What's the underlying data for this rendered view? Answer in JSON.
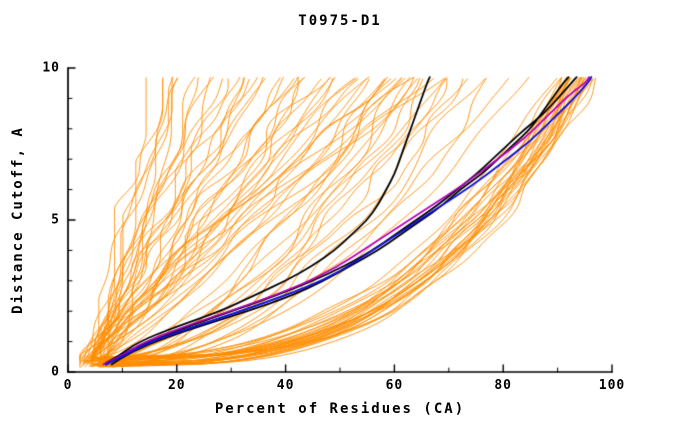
{
  "chart_data": {
    "type": "line",
    "title": "T0975-D1",
    "xlabel": "Percent of Residues (CA)",
    "ylabel": "Distance Cutoff, A",
    "xlim": [
      0,
      100
    ],
    "ylim": [
      0,
      10
    ],
    "x_major_ticks": [
      0,
      20,
      40,
      60,
      80,
      100
    ],
    "x_minor_ticks": [
      10,
      30,
      50,
      70,
      90
    ],
    "y_major_ticks": [
      0,
      5,
      10
    ],
    "y_minor_ticks": [
      1,
      2,
      3,
      4,
      6,
      7,
      8,
      9
    ],
    "y_data_max": 9.7,
    "grid": false,
    "legend": "none",
    "colors": {
      "prediction": "#ff8c00",
      "highlight": "#000000",
      "best_model": "#1111dd",
      "reference": "#bb00bb",
      "axis": "#000000",
      "background": "#ffffff"
    },
    "prediction_curves": [
      [
        6,
        96,
        0.32,
        101,
        0.9
      ],
      [
        7,
        95,
        0.35,
        102,
        0.9
      ],
      [
        5,
        94,
        0.33,
        103,
        0.9
      ],
      [
        8,
        96,
        0.3,
        104,
        0.9
      ],
      [
        6,
        93,
        0.36,
        105,
        0.9
      ],
      [
        7,
        97,
        0.31,
        106,
        0.9
      ],
      [
        5,
        92,
        0.38,
        107,
        0.9
      ],
      [
        8,
        95,
        0.34,
        108,
        0.9
      ],
      [
        6,
        94,
        0.37,
        109,
        0.9
      ],
      [
        7,
        96,
        0.33,
        110,
        0.9
      ],
      [
        5,
        95,
        0.3,
        111,
        0.9
      ],
      [
        8,
        93,
        0.39,
        112,
        0.9
      ],
      [
        6,
        92,
        0.35,
        113,
        0.9
      ],
      [
        7,
        94,
        0.32,
        114,
        0.9
      ],
      [
        5,
        96,
        0.36,
        115,
        0.9
      ],
      [
        8,
        94,
        0.31,
        116,
        0.9
      ],
      [
        6,
        95,
        0.38,
        117,
        0.9
      ],
      [
        7,
        93,
        0.34,
        118,
        0.9
      ],
      [
        5,
        93,
        0.4,
        119,
        0.9
      ],
      [
        8,
        96,
        0.33,
        120,
        0.9
      ],
      [
        6,
        91,
        0.36,
        121,
        0.9
      ],
      [
        7,
        95,
        0.37,
        122,
        0.9
      ],
      [
        5,
        94,
        0.31,
        123,
        0.9
      ],
      [
        8,
        92,
        0.35,
        124,
        0.9
      ],
      [
        6,
        96,
        0.34,
        125,
        0.9
      ],
      [
        7,
        91,
        0.38,
        126,
        0.9
      ],
      [
        5,
        95,
        0.33,
        127,
        0.9
      ],
      [
        6,
        90,
        0.41,
        128,
        0.9
      ],
      [
        7,
        92,
        0.3,
        129,
        0.9
      ],
      [
        5,
        91,
        0.37,
        130,
        0.9
      ],
      [
        5,
        62,
        0.55,
        131,
        1.3
      ],
      [
        6,
        66,
        0.5,
        132,
        1.3
      ],
      [
        4,
        70,
        0.52,
        133,
        1.3
      ],
      [
        7,
        58,
        0.6,
        134,
        1.3
      ],
      [
        5,
        75,
        0.48,
        135,
        1.3
      ],
      [
        6,
        60,
        0.65,
        136,
        1.3
      ],
      [
        4,
        64,
        0.58,
        137,
        1.3
      ],
      [
        7,
        72,
        0.5,
        138,
        1.3
      ],
      [
        5,
        68,
        0.62,
        139,
        1.3
      ],
      [
        6,
        78,
        0.47,
        140,
        1.3
      ],
      [
        4,
        56,
        0.68,
        141,
        1.3
      ],
      [
        7,
        65,
        0.55,
        142,
        1.3
      ],
      [
        5,
        80,
        0.5,
        143,
        1.3
      ],
      [
        6,
        63,
        0.6,
        144,
        1.3
      ],
      [
        4,
        74,
        0.53,
        145,
        1.3
      ],
      [
        7,
        69,
        0.57,
        146,
        1.3
      ],
      [
        5,
        59,
        0.64,
        147,
        1.3
      ],
      [
        6,
        84,
        0.49,
        148,
        1.3
      ],
      [
        4,
        15,
        1.0,
        149,
        1.5
      ],
      [
        5,
        18,
        0.95,
        150,
        1.5
      ],
      [
        3,
        20,
        1.05,
        151,
        1.5
      ],
      [
        6,
        22,
        1.1,
        152,
        1.5
      ],
      [
        4,
        24,
        0.9,
        153,
        1.5
      ],
      [
        5,
        26,
        1.0,
        154,
        1.5
      ],
      [
        3,
        28,
        1.15,
        155,
        1.5
      ],
      [
        6,
        30,
        0.92,
        156,
        1.5
      ],
      [
        4,
        32,
        1.05,
        157,
        1.5
      ],
      [
        5,
        34,
        0.98,
        158,
        1.5
      ],
      [
        3,
        36,
        1.1,
        159,
        1.5
      ],
      [
        6,
        38,
        0.9,
        160,
        1.5
      ],
      [
        4,
        40,
        1.0,
        161,
        1.5
      ],
      [
        5,
        42,
        1.08,
        162,
        1.5
      ],
      [
        3,
        44,
        0.94,
        163,
        1.5
      ],
      [
        6,
        46,
        1.02,
        164,
        1.5
      ],
      [
        4,
        48,
        0.96,
        165,
        1.5
      ],
      [
        5,
        50,
        1.12,
        166,
        1.5
      ],
      [
        3,
        52,
        0.9,
        167,
        1.5
      ],
      [
        6,
        54,
        1.0,
        168,
        1.5
      ],
      [
        4,
        56,
        1.06,
        169,
        1.5
      ],
      [
        5,
        58,
        0.93,
        170,
        1.5
      ],
      [
        3,
        60,
        1.04,
        171,
        1.5
      ],
      [
        6,
        62,
        0.97,
        172,
        1.5
      ],
      [
        4,
        64,
        1.1,
        173,
        1.5
      ],
      [
        5,
        66,
        0.9,
        174,
        1.5
      ],
      [
        3,
        68,
        1.0,
        175,
        1.5
      ],
      [
        6,
        17,
        1.05,
        176,
        1.5
      ],
      [
        4,
        21,
        0.92,
        177,
        1.5
      ],
      [
        5,
        25,
        1.08,
        178,
        1.5
      ],
      [
        3,
        29,
        0.95,
        179,
        1.5
      ],
      [
        6,
        33,
        1.02,
        180,
        1.5
      ],
      [
        4,
        37,
        1.12,
        181,
        1.5
      ],
      [
        5,
        41,
        0.9,
        182,
        1.5
      ],
      [
        3,
        45,
        1.0,
        183,
        1.5
      ],
      [
        6,
        49,
        1.05,
        184,
        1.5
      ],
      [
        4,
        53,
        0.94,
        185,
        1.5
      ],
      [
        5,
        57,
        1.1,
        186,
        1.5
      ],
      [
        3,
        61,
        0.98,
        187,
        1.5
      ],
      [
        6,
        65,
        1.03,
        188,
        1.5
      ],
      [
        4,
        19,
        1.0,
        189,
        1.5
      ],
      [
        5,
        27,
        0.96,
        190,
        1.5
      ],
      [
        3,
        35,
        1.07,
        191,
        1.5
      ],
      [
        6,
        43,
        0.91,
        192,
        1.5
      ],
      [
        4,
        51,
        1.01,
        193,
        1.5
      ]
    ],
    "highlight_curves": [
      {
        "name": "black-mid",
        "color": "#000000",
        "width": 1.8,
        "points": [
          [
            7,
            0.25
          ],
          [
            9,
            0.5
          ],
          [
            13,
            1.0
          ],
          [
            20,
            1.5
          ],
          [
            28,
            2.0
          ],
          [
            34,
            2.5
          ],
          [
            40,
            3.0
          ],
          [
            45,
            3.5
          ],
          [
            49,
            4.0
          ],
          [
            52,
            4.5
          ],
          [
            55,
            5.0
          ],
          [
            57,
            5.5
          ],
          [
            58.5,
            6.0
          ],
          [
            60,
            6.5
          ],
          [
            61,
            7.0
          ],
          [
            62,
            7.5
          ],
          [
            63,
            8.0
          ],
          [
            64,
            8.5
          ],
          [
            65,
            9.0
          ],
          [
            66,
            9.5
          ],
          [
            66.5,
            9.7
          ]
        ]
      },
      {
        "name": "black-right-a",
        "color": "#000000",
        "width": 1.8,
        "points": [
          [
            8,
            0.25
          ],
          [
            11,
            0.6
          ],
          [
            16,
            1.0
          ],
          [
            24,
            1.5
          ],
          [
            33,
            2.0
          ],
          [
            41,
            2.5
          ],
          [
            47,
            3.0
          ],
          [
            52,
            3.5
          ],
          [
            57,
            4.0
          ],
          [
            61,
            4.5
          ],
          [
            65,
            5.0
          ],
          [
            69,
            5.5
          ],
          [
            72,
            6.0
          ],
          [
            76,
            6.5
          ],
          [
            79,
            7.0
          ],
          [
            82,
            7.5
          ],
          [
            85,
            8.0
          ],
          [
            87,
            8.5
          ],
          [
            89,
            9.0
          ],
          [
            91,
            9.5
          ],
          [
            92,
            9.7
          ]
        ]
      },
      {
        "name": "black-right-b",
        "color": "#000000",
        "width": 1.8,
        "points": [
          [
            7,
            0.3
          ],
          [
            10,
            0.6
          ],
          [
            15,
            1.0
          ],
          [
            22,
            1.5
          ],
          [
            30,
            2.0
          ],
          [
            38,
            2.5
          ],
          [
            45,
            3.0
          ],
          [
            51,
            3.5
          ],
          [
            56,
            4.0
          ],
          [
            60,
            4.5
          ],
          [
            64,
            5.0
          ],
          [
            68,
            5.5
          ],
          [
            71.5,
            6.0
          ],
          [
            75,
            6.5
          ],
          [
            78,
            7.0
          ],
          [
            81,
            7.5
          ],
          [
            84,
            8.0
          ],
          [
            87.5,
            8.5
          ],
          [
            90,
            9.0
          ],
          [
            92.5,
            9.5
          ],
          [
            93.5,
            9.7
          ]
        ]
      },
      {
        "name": "magenta",
        "color": "#bb00bb",
        "width": 1.8,
        "points": [
          [
            6.5,
            0.25
          ],
          [
            9.5,
            0.5
          ],
          [
            14,
            1.0
          ],
          [
            23,
            1.6
          ],
          [
            33,
            2.2
          ],
          [
            42,
            2.8
          ],
          [
            49,
            3.4
          ],
          [
            55,
            4.1
          ],
          [
            61,
            4.8
          ],
          [
            67,
            5.5
          ],
          [
            73,
            6.2
          ],
          [
            79,
            7.0
          ],
          [
            84,
            7.7
          ],
          [
            88,
            8.4
          ],
          [
            92,
            9.1
          ],
          [
            95,
            9.5
          ],
          [
            95.8,
            9.7
          ]
        ]
      },
      {
        "name": "blue",
        "color": "#1111dd",
        "width": 1.9,
        "points": [
          [
            7,
            0.25
          ],
          [
            10,
            0.5
          ],
          [
            15,
            1.0
          ],
          [
            25,
            1.6
          ],
          [
            35,
            2.2
          ],
          [
            44,
            2.8
          ],
          [
            50,
            3.3
          ],
          [
            56,
            4.0
          ],
          [
            62,
            4.7
          ],
          [
            68,
            5.4
          ],
          [
            74,
            6.1
          ],
          [
            80,
            6.9
          ],
          [
            85,
            7.6
          ],
          [
            89,
            8.3
          ],
          [
            93,
            9.0
          ],
          [
            95.5,
            9.5
          ],
          [
            96.2,
            9.7
          ]
        ]
      }
    ]
  }
}
